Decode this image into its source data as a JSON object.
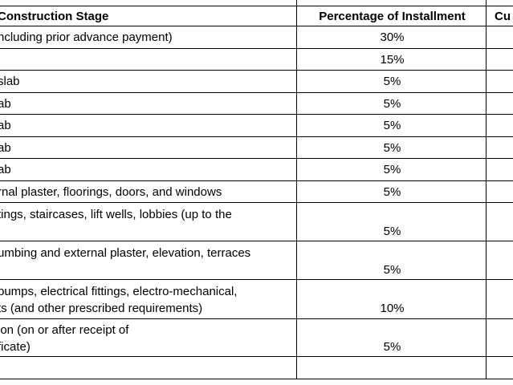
{
  "header": {
    "stage": "Construction Stage",
    "percentage": "Percentage of Installment",
    "cumulative_partial": "Cu"
  },
  "rows": [
    {
      "stage_lines": [
        "ncluding prior advance payment)"
      ],
      "percentage": "30%"
    },
    {
      "stage_lines": [
        ""
      ],
      "percentage": "15%"
    },
    {
      "stage_lines": [
        "slab"
      ],
      "percentage": "5%"
    },
    {
      "stage_lines": [
        "ab"
      ],
      "percentage": "5%"
    },
    {
      "stage_lines": [
        "ab"
      ],
      "percentage": "5%"
    },
    {
      "stage_lines": [
        "ab"
      ],
      "percentage": "5%"
    },
    {
      "stage_lines": [
        "ab"
      ],
      "percentage": "5%"
    },
    {
      "stage_lines": [
        "rnal plaster, floorings, doors, and windows"
      ],
      "percentage": "5%"
    },
    {
      "stage_lines": [
        "tings, staircases, lift wells, lobbies (up to the",
        ""
      ],
      "percentage": "5%"
    },
    {
      "stage_lines": [
        "umbing and external plaster, elevation, terraces",
        ""
      ],
      "percentage": "5%"
    },
    {
      "stage_lines": [
        "pumps, electrical fittings, electro-mechanical,",
        "ts (and other prescribed requirements)"
      ],
      "percentage": "10%"
    },
    {
      "stage_lines": [
        "ion (on or after receipt of",
        "ficate)"
      ],
      "percentage": "5%"
    },
    {
      "stage_lines": [
        ""
      ],
      "percentage": ""
    }
  ]
}
